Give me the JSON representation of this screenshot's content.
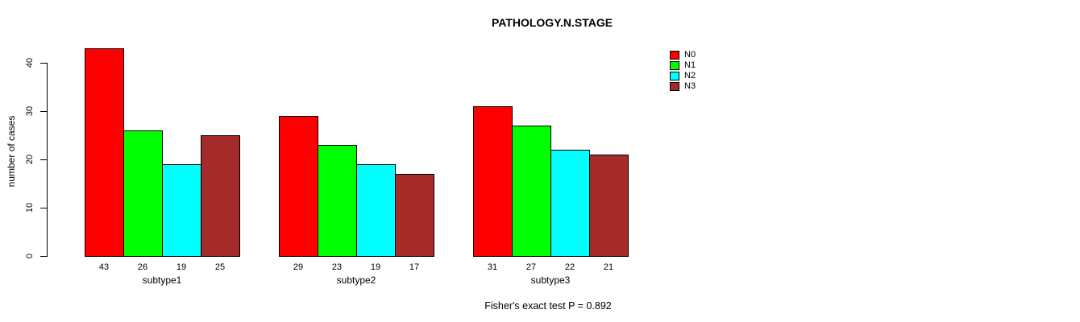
{
  "chart_data": {
    "type": "bar",
    "title": "PATHOLOGY.N.STAGE",
    "ylabel": "number of cases",
    "xlabel": "",
    "categories": [
      "subtype1",
      "subtype2",
      "subtype3"
    ],
    "series": [
      {
        "name": "N0",
        "color": "#ff0000",
        "values": [
          43,
          29,
          31
        ]
      },
      {
        "name": "N1",
        "color": "#00ff00",
        "values": [
          26,
          23,
          27
        ]
      },
      {
        "name": "N2",
        "color": "#00ffff",
        "values": [
          19,
          19,
          22
        ]
      },
      {
        "name": "N3",
        "color": "#a52a2a",
        "values": [
          25,
          17,
          21
        ]
      }
    ],
    "bar_value_labels": [
      [
        43,
        26,
        19,
        25
      ],
      [
        29,
        23,
        19,
        17
      ],
      [
        31,
        27,
        22,
        21
      ]
    ],
    "yticks": [
      0,
      10,
      20,
      30,
      40
    ],
    "ylim": [
      0,
      43
    ],
    "grid": "off",
    "legend_position": "top-right",
    "annotation": "Fisher's exact test P = 0.892",
    "background_color": "#ffffff",
    "text_color": "#000000"
  }
}
